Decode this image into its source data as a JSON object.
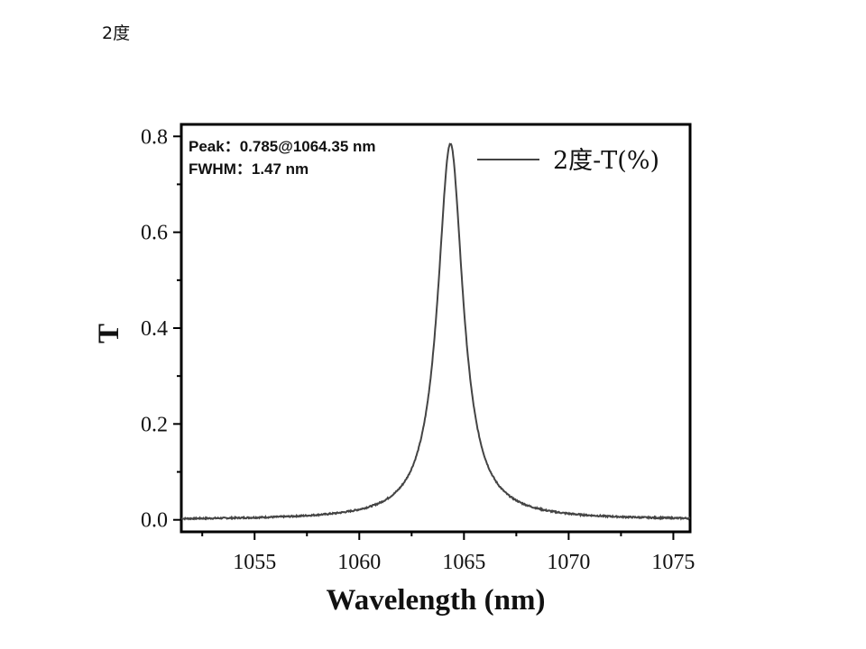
{
  "page": {
    "label": "2度"
  },
  "chart_data": {
    "type": "line",
    "xlabel": "Wavelength (nm)",
    "ylabel": "T",
    "xlim": [
      1051.5,
      1075.8
    ],
    "ylim": [
      -0.025,
      0.825
    ],
    "xticks": [
      1055,
      1060,
      1065,
      1070,
      1075
    ],
    "yticks": [
      0.0,
      0.2,
      0.4,
      0.6,
      0.8
    ],
    "xtick_labels": [
      "1055",
      "1060",
      "1065",
      "1070",
      "1075"
    ],
    "ytick_labels": [
      "0.0",
      "0.2",
      "0.4",
      "0.6",
      "0.8"
    ],
    "grid": false,
    "legend_position": "top-right",
    "annotations": {
      "peak": "Peak：0.785@1064.35 nm",
      "fwhm": "FWHM：1.47 nm"
    },
    "series": [
      {
        "name": "2度-T(%)",
        "color": "#444444",
        "model": "lorentzian",
        "peak_wavelength": 1064.35,
        "peak_value": 0.785,
        "fwhm": 1.47,
        "baseline": 0.0,
        "x_start": 1051.5,
        "x_end": 1075.8
      }
    ]
  }
}
